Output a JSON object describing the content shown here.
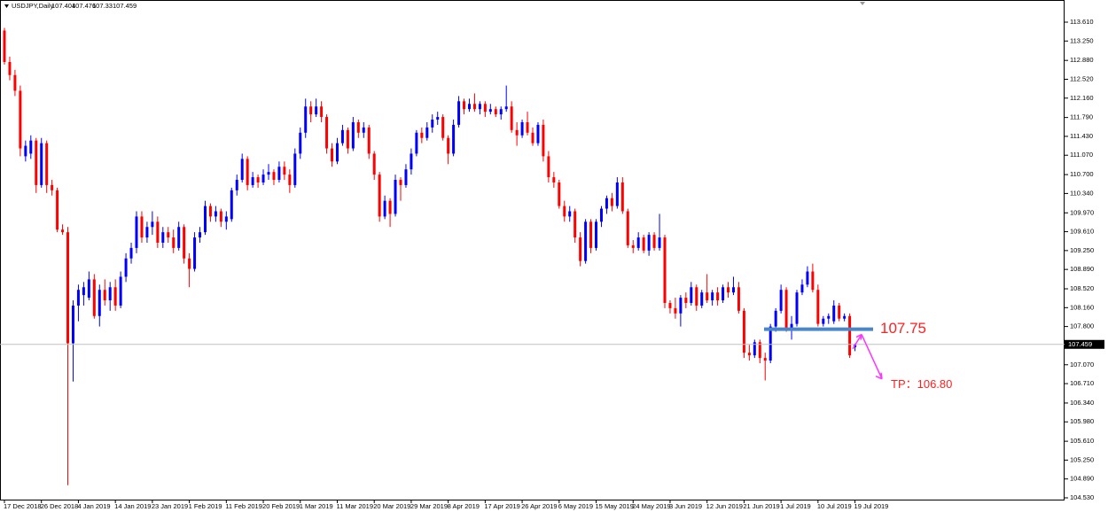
{
  "chart_data": {
    "type": "candlestick",
    "title": "USDJPY,Daily",
    "categories": [
      "17 Dec 2018",
      null,
      null,
      null,
      null,
      null,
      null,
      "26 Dec 2018",
      null,
      null,
      null,
      null,
      null,
      null,
      "4 Jan 2019",
      null,
      null,
      null,
      null,
      null,
      null,
      "14 Jan 2019",
      null,
      null,
      null,
      null,
      null,
      null,
      "23 Jan 2019",
      null,
      null,
      null,
      null,
      null,
      null,
      "1 Feb 2019",
      null,
      null,
      null,
      null,
      null,
      null,
      "11 Feb 2019",
      null,
      null,
      null,
      null,
      null,
      null,
      "20 Feb 2019",
      null,
      null,
      null,
      null,
      null,
      null,
      "1 Mar 2019",
      null,
      null,
      null,
      null,
      null,
      null,
      "11 Mar 2019",
      null,
      null,
      null,
      null,
      null,
      null,
      "20 Mar 2019",
      null,
      null,
      null,
      null,
      null,
      null,
      "29 Mar 2019",
      null,
      null,
      null,
      null,
      null,
      null,
      "8 Apr 2019",
      null,
      null,
      null,
      null,
      null,
      null,
      "17 Apr 2019",
      null,
      null,
      null,
      null,
      null,
      null,
      "26 Apr 2019",
      null,
      null,
      null,
      null,
      null,
      null,
      "6 May 2019",
      null,
      null,
      null,
      null,
      null,
      null,
      "15 May 2019",
      null,
      null,
      null,
      null,
      null,
      null,
      "24 May 2019",
      null,
      null,
      null,
      null,
      null,
      null,
      "3 Jun 2019",
      null,
      null,
      null,
      null,
      null,
      null,
      "12 Jun 2019",
      null,
      null,
      null,
      null,
      null,
      null,
      "21 Jun 2019",
      null,
      null,
      null,
      null,
      null,
      null,
      "1 Jul 2019",
      null,
      null,
      null,
      null,
      null,
      null,
      "10 Jul 2019",
      null,
      null,
      null,
      null,
      null,
      null,
      "19 Jul 2019"
    ],
    "series": [
      {
        "up_color": "#0000ff",
        "down_color": "#ff0000",
        "open": [
          113.45,
          112.85,
          112.6,
          112.3,
          111.05,
          111.1,
          111.35,
          110.5,
          111.3,
          110.5,
          110.4,
          109.65,
          109.6,
          107.48,
          108.2,
          108.4,
          108.35,
          108.7,
          108.0,
          108.5,
          108.3,
          108.55,
          108.2,
          108.75,
          109.1,
          109.3,
          109.9,
          109.5,
          109.7,
          109.8,
          109.4,
          109.6,
          109.5,
          109.3,
          109.7,
          109.1,
          108.9,
          109.5,
          109.6,
          110.1,
          109.9,
          110.0,
          109.8,
          109.85,
          110.4,
          110.6,
          111.0,
          110.5,
          110.65,
          110.55,
          110.7,
          110.75,
          110.6,
          110.85,
          110.7,
          110.5,
          111.1,
          111.5,
          112.0,
          111.85,
          112.0,
          111.8,
          111.2,
          110.95,
          111.3,
          111.55,
          111.2,
          111.7,
          111.5,
          111.6,
          111.1,
          110.7,
          109.9,
          110.2,
          109.95,
          110.6,
          110.5,
          110.8,
          111.1,
          111.5,
          111.4,
          111.6,
          111.75,
          111.8,
          111.4,
          111.1,
          111.65,
          112.1,
          111.95,
          112.05,
          111.95,
          112.05,
          111.9,
          111.95,
          111.85,
          111.95,
          112.0,
          111.55,
          111.45,
          111.7,
          111.5,
          111.3,
          111.65,
          111.05,
          110.65,
          110.55,
          110.1,
          109.9,
          110.0,
          109.5,
          109.05,
          109.8,
          109.3,
          109.8,
          110.05,
          110.25,
          110.1,
          110.55,
          110.0,
          109.35,
          109.3,
          109.5,
          109.25,
          109.55,
          109.3,
          109.5,
          108.25,
          108.15,
          108.05,
          108.35,
          108.25,
          108.55,
          108.2,
          108.45,
          108.3,
          108.45,
          108.3,
          108.55,
          108.45,
          108.55,
          108.1,
          107.3,
          107.25,
          107.5,
          107.2,
          107.15,
          107.8,
          108.1,
          108.5,
          107.75,
          107.85,
          108.45,
          108.6,
          108.85,
          108.5,
          107.85,
          107.95,
          107.9,
          108.2,
          107.95,
          108.0,
          107.404
        ],
        "high": [
          113.5,
          112.95,
          112.7,
          112.4,
          111.35,
          111.45,
          111.4,
          111.4,
          111.35,
          110.6,
          110.45,
          109.75,
          109.7,
          108.3,
          108.6,
          108.65,
          108.85,
          108.8,
          108.6,
          108.7,
          108.65,
          108.7,
          108.85,
          109.2,
          109.4,
          110.0,
          110.0,
          109.8,
          110.0,
          109.9,
          109.7,
          109.7,
          109.65,
          109.8,
          109.75,
          109.2,
          109.6,
          109.7,
          110.2,
          110.15,
          110.1,
          110.05,
          110.0,
          110.45,
          110.7,
          111.1,
          111.05,
          110.75,
          110.7,
          110.8,
          110.9,
          110.8,
          110.95,
          110.95,
          110.8,
          111.2,
          111.6,
          112.15,
          112.1,
          112.15,
          112.1,
          111.85,
          111.3,
          111.4,
          111.65,
          111.6,
          111.8,
          111.75,
          111.7,
          111.65,
          111.15,
          110.75,
          110.3,
          110.25,
          110.7,
          110.65,
          110.9,
          111.2,
          111.55,
          111.6,
          111.7,
          111.85,
          111.9,
          111.85,
          111.45,
          111.75,
          112.2,
          112.15,
          112.15,
          112.25,
          112.1,
          112.1,
          112.05,
          112.0,
          112.0,
          112.4,
          112.1,
          111.7,
          111.75,
          111.9,
          111.6,
          111.7,
          111.75,
          111.15,
          110.75,
          110.6,
          110.2,
          110.1,
          110.05,
          109.6,
          109.85,
          109.85,
          109.85,
          110.1,
          110.3,
          110.35,
          110.65,
          110.65,
          110.05,
          109.45,
          109.6,
          109.55,
          109.6,
          109.6,
          109.95,
          109.55,
          108.3,
          108.35,
          108.4,
          108.45,
          108.65,
          108.6,
          108.5,
          108.8,
          108.5,
          108.55,
          108.6,
          108.65,
          108.75,
          108.65,
          108.15,
          107.45,
          107.55,
          107.55,
          107.3,
          107.85,
          108.15,
          108.6,
          108.55,
          108.0,
          108.5,
          108.7,
          108.95,
          109.0,
          108.6,
          108.0,
          108.05,
          108.3,
          108.25,
          108.05,
          108.05,
          107.476
        ],
        "low": [
          112.8,
          112.5,
          112.2,
          111.05,
          110.95,
          111.0,
          110.35,
          110.45,
          110.35,
          110.3,
          109.6,
          109.55,
          104.77,
          106.75,
          107.9,
          108.2,
          108.3,
          107.95,
          107.8,
          108.2,
          108.1,
          108.1,
          108.15,
          108.65,
          109.0,
          109.2,
          109.4,
          109.4,
          109.55,
          109.3,
          109.3,
          109.4,
          109.2,
          109.25,
          109.0,
          108.55,
          108.85,
          109.4,
          109.55,
          109.8,
          109.8,
          109.7,
          109.65,
          109.8,
          110.3,
          110.55,
          110.4,
          110.45,
          110.45,
          110.5,
          110.6,
          110.5,
          110.55,
          110.6,
          110.35,
          110.45,
          111.0,
          111.4,
          111.7,
          111.8,
          111.7,
          111.1,
          110.85,
          110.9,
          111.25,
          111.1,
          111.15,
          111.4,
          111.4,
          111.0,
          110.6,
          109.8,
          109.85,
          109.7,
          109.9,
          110.2,
          110.45,
          110.7,
          111.05,
          111.3,
          111.35,
          111.5,
          111.65,
          111.35,
          110.9,
          111.05,
          111.6,
          111.85,
          111.9,
          111.9,
          111.85,
          111.8,
          111.85,
          111.8,
          111.75,
          111.9,
          111.5,
          111.25,
          111.4,
          111.45,
          111.25,
          111.25,
          110.95,
          110.55,
          110.45,
          110.05,
          109.8,
          109.8,
          109.4,
          108.95,
          109.0,
          109.2,
          109.25,
          109.7,
          109.95,
          110.0,
          110.05,
          109.95,
          109.3,
          109.2,
          109.25,
          109.2,
          109.15,
          109.25,
          109.25,
          108.15,
          108.05,
          107.95,
          107.8,
          108.15,
          108.2,
          108.1,
          108.15,
          108.25,
          108.2,
          108.2,
          108.25,
          108.35,
          108.4,
          108.05,
          107.2,
          107.15,
          107.2,
          107.1,
          106.77,
          107.1,
          107.7,
          108.05,
          107.7,
          107.55,
          107.8,
          108.4,
          108.55,
          108.45,
          107.8,
          107.8,
          107.85,
          107.85,
          107.9,
          107.9,
          107.2,
          107.33
        ],
        "close": [
          112.85,
          112.6,
          112.3,
          111.2,
          111.25,
          111.35,
          110.5,
          111.3,
          110.5,
          110.4,
          109.65,
          109.6,
          107.48,
          108.2,
          108.5,
          108.55,
          108.7,
          108.0,
          108.5,
          108.3,
          108.55,
          108.2,
          108.75,
          109.1,
          109.3,
          109.9,
          109.5,
          109.7,
          109.8,
          109.4,
          109.6,
          109.5,
          109.3,
          109.7,
          109.1,
          108.9,
          109.5,
          109.6,
          110.1,
          109.9,
          110.0,
          109.8,
          109.9,
          110.4,
          110.6,
          111.0,
          110.5,
          110.65,
          110.55,
          110.7,
          110.75,
          110.6,
          110.85,
          110.7,
          110.5,
          111.1,
          111.5,
          112.0,
          111.85,
          112.0,
          111.8,
          111.2,
          110.95,
          111.3,
          111.55,
          111.2,
          111.7,
          111.5,
          111.6,
          111.1,
          110.7,
          109.9,
          110.2,
          109.95,
          110.6,
          110.5,
          110.8,
          111.1,
          111.5,
          111.4,
          111.6,
          111.75,
          111.8,
          111.4,
          111.1,
          111.65,
          112.1,
          111.95,
          112.05,
          111.95,
          112.05,
          111.9,
          111.95,
          111.85,
          111.95,
          112.0,
          111.55,
          111.45,
          111.7,
          111.5,
          111.3,
          111.65,
          111.05,
          110.65,
          110.55,
          110.1,
          109.9,
          110.0,
          109.5,
          109.05,
          109.8,
          109.3,
          109.8,
          110.05,
          110.25,
          110.1,
          110.55,
          110.0,
          109.35,
          109.3,
          109.5,
          109.25,
          109.55,
          109.3,
          109.5,
          108.25,
          108.15,
          108.05,
          108.35,
          108.25,
          108.55,
          108.2,
          108.45,
          108.3,
          108.45,
          108.3,
          108.55,
          108.45,
          108.55,
          108.1,
          107.3,
          107.25,
          107.5,
          107.2,
          107.15,
          107.8,
          108.1,
          108.5,
          107.75,
          107.85,
          108.45,
          108.6,
          108.85,
          108.5,
          107.85,
          107.95,
          108.0,
          108.2,
          107.95,
          108.0,
          107.25,
          107.459
        ]
      }
    ],
    "ylim": [
      104.496,
      114.033
    ],
    "yticks": [
      {
        "value": 113.61,
        "label": "113.610"
      },
      {
        "value": 113.25,
        "label": "113.250"
      },
      {
        "value": 112.88,
        "label": "112.880"
      },
      {
        "value": 112.52,
        "label": "112.520"
      },
      {
        "value": 112.16,
        "label": "112.160"
      },
      {
        "value": 111.79,
        "label": "111.790"
      },
      {
        "value": 111.43,
        "label": "111.430"
      },
      {
        "value": 111.07,
        "label": "111.070"
      },
      {
        "value": 110.7,
        "label": "110.700"
      },
      {
        "value": 110.34,
        "label": "110.340"
      },
      {
        "value": 109.97,
        "label": "109.970"
      },
      {
        "value": 109.61,
        "label": "109.610"
      },
      {
        "value": 109.25,
        "label": "109.250"
      },
      {
        "value": 108.89,
        "label": "108.890"
      },
      {
        "value": 108.52,
        "label": "108.520"
      },
      {
        "value": 108.16,
        "label": "108.160"
      },
      {
        "value": 107.8,
        "label": "107.800"
      },
      {
        "value": 107.07,
        "label": "107.070"
      },
      {
        "value": 106.71,
        "label": "106.710"
      },
      {
        "value": 106.34,
        "label": "106.340"
      },
      {
        "value": 105.98,
        "label": "105.980"
      },
      {
        "value": 105.61,
        "label": "105.610"
      },
      {
        "value": 105.25,
        "label": "105.250"
      },
      {
        "value": 104.89,
        "label": "104.890"
      },
      {
        "value": 104.53,
        "label": "104.530"
      }
    ],
    "grid": false,
    "annotations": {
      "level": 107.75,
      "level_color": "#4a86c8",
      "tp": 106.8,
      "tp_label": "TP：106.80",
      "text_color": "#ff2020",
      "arrow_color": "#ff33ff"
    }
  }
}
